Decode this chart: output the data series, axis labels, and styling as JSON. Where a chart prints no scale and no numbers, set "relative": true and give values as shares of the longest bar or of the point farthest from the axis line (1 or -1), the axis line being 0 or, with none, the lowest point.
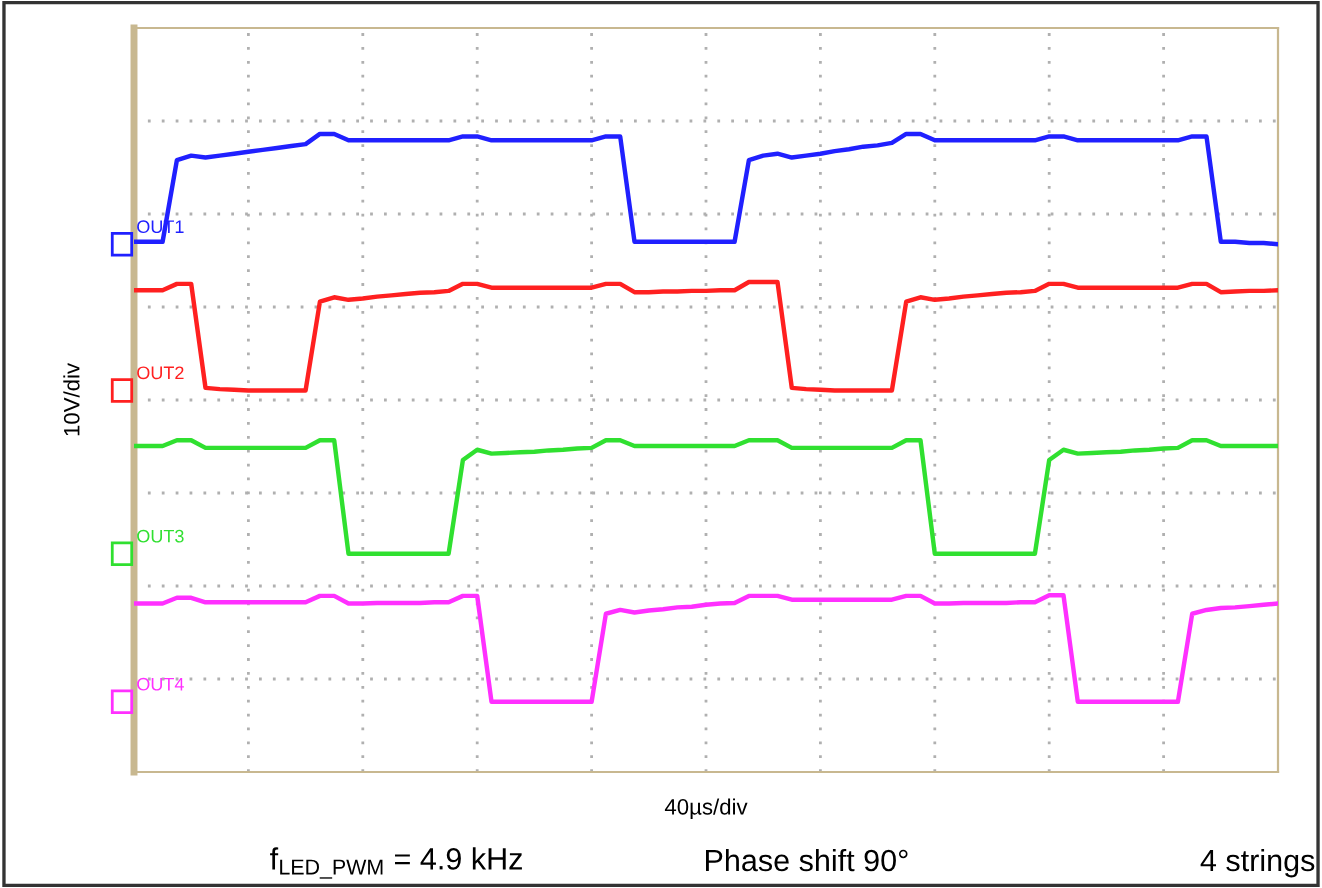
{
  "chart_data": {
    "type": "line",
    "relative": true,
    "xlabel": "40µs/div",
    "ylabel": "10V/div",
    "categories": [
      null,
      null,
      null,
      null,
      null,
      null,
      null,
      null,
      null,
      null,
      null,
      null,
      null,
      null,
      null,
      null,
      null,
      null,
      null,
      null,
      null,
      null,
      null,
      null,
      null,
      null,
      null,
      null,
      null,
      null,
      null,
      null,
      null,
      null,
      null,
      null,
      null,
      null,
      null,
      null,
      null,
      null,
      null,
      null,
      null,
      null,
      null,
      null,
      null,
      null,
      null,
      null,
      null,
      null,
      null,
      null,
      null,
      null,
      null,
      null,
      null,
      null,
      null,
      null,
      null,
      null,
      null,
      null,
      null,
      null,
      null,
      null,
      null,
      null,
      null,
      null,
      null,
      null,
      null,
      null,
      null
    ],
    "grid": true,
    "legend": "left",
    "marker": "none",
    "line_style": "solid",
    "annotations": [
      "f$_{LED_PWM}$ = 4.9 kHz",
      "Phase shift 90°",
      "4 strings"
    ],
    "series": [
      {
        "name": "OUT1",
        "color": "#2020ff",
        "values": [
          0.831,
          0.831,
          0.831,
          0.959,
          0.966,
          0.963,
          0.966,
          0.969,
          0.972,
          0.975,
          0.978,
          0.981,
          0.984,
          1.0,
          1.0,
          0.99,
          0.99,
          0.99,
          0.99,
          0.99,
          0.99,
          0.99,
          0.99,
          0.996,
          0.996,
          0.99,
          0.99,
          0.99,
          0.99,
          0.99,
          0.99,
          0.99,
          0.99,
          0.996,
          0.996,
          0.831,
          0.831,
          0.831,
          0.831,
          0.831,
          0.831,
          0.831,
          0.831,
          0.959,
          0.966,
          0.969,
          0.963,
          0.966,
          0.969,
          0.973,
          0.976,
          0.98,
          0.982,
          0.986,
          1.0,
          1.0,
          0.99,
          0.99,
          0.99,
          0.99,
          0.99,
          0.99,
          0.99,
          0.99,
          0.996,
          0.996,
          0.99,
          0.99,
          0.99,
          0.99,
          0.99,
          0.99,
          0.99,
          0.99,
          0.996,
          0.996,
          0.831,
          0.831,
          0.829,
          0.829,
          0.827
        ]
      },
      {
        "name": "OUT2",
        "color": "#ff2020",
        "values": [
          0.755,
          0.755,
          0.755,
          0.765,
          0.765,
          0.602,
          0.6,
          0.599,
          0.598,
          0.598,
          0.598,
          0.598,
          0.598,
          0.737,
          0.744,
          0.74,
          0.742,
          0.745,
          0.747,
          0.749,
          0.751,
          0.752,
          0.754,
          0.765,
          0.765,
          0.759,
          0.759,
          0.759,
          0.759,
          0.759,
          0.759,
          0.759,
          0.759,
          0.765,
          0.765,
          0.752,
          0.752,
          0.753,
          0.753,
          0.754,
          0.754,
          0.755,
          0.755,
          0.768,
          0.768,
          0.768,
          0.602,
          0.6,
          0.599,
          0.598,
          0.598,
          0.598,
          0.598,
          0.598,
          0.737,
          0.744,
          0.74,
          0.742,
          0.745,
          0.747,
          0.749,
          0.751,
          0.752,
          0.754,
          0.765,
          0.765,
          0.759,
          0.759,
          0.759,
          0.759,
          0.759,
          0.759,
          0.759,
          0.759,
          0.765,
          0.765,
          0.752,
          0.753,
          0.754,
          0.754,
          0.755
        ]
      },
      {
        "name": "OUT3",
        "color": "#30e030",
        "values": [
          0.511,
          0.511,
          0.511,
          0.52,
          0.52,
          0.508,
          0.508,
          0.508,
          0.508,
          0.508,
          0.508,
          0.508,
          0.508,
          0.52,
          0.52,
          0.342,
          0.342,
          0.342,
          0.342,
          0.342,
          0.342,
          0.342,
          0.342,
          0.489,
          0.505,
          0.499,
          0.5,
          0.501,
          0.502,
          0.504,
          0.505,
          0.507,
          0.508,
          0.52,
          0.52,
          0.511,
          0.511,
          0.511,
          0.511,
          0.511,
          0.511,
          0.511,
          0.511,
          0.52,
          0.52,
          0.52,
          0.508,
          0.508,
          0.508,
          0.508,
          0.508,
          0.508,
          0.508,
          0.508,
          0.52,
          0.52,
          0.342,
          0.342,
          0.342,
          0.342,
          0.342,
          0.342,
          0.342,
          0.342,
          0.489,
          0.505,
          0.499,
          0.5,
          0.501,
          0.502,
          0.504,
          0.505,
          0.507,
          0.508,
          0.52,
          0.52,
          0.511,
          0.511,
          0.511,
          0.511,
          0.511
        ]
      },
      {
        "name": "OUT4",
        "color": "#ff30ff",
        "values": [
          0.264,
          0.264,
          0.264,
          0.273,
          0.273,
          0.266,
          0.266,
          0.266,
          0.266,
          0.266,
          0.266,
          0.266,
          0.266,
          0.276,
          0.276,
          0.264,
          0.264,
          0.265,
          0.265,
          0.265,
          0.265,
          0.266,
          0.266,
          0.276,
          0.276,
          0.11,
          0.11,
          0.11,
          0.11,
          0.11,
          0.11,
          0.11,
          0.11,
          0.248,
          0.254,
          0.25,
          0.253,
          0.255,
          0.258,
          0.259,
          0.262,
          0.264,
          0.265,
          0.276,
          0.276,
          0.276,
          0.27,
          0.27,
          0.27,
          0.27,
          0.27,
          0.27,
          0.27,
          0.27,
          0.276,
          0.276,
          0.264,
          0.264,
          0.265,
          0.265,
          0.265,
          0.265,
          0.266,
          0.266,
          0.277,
          0.277,
          0.11,
          0.11,
          0.11,
          0.11,
          0.11,
          0.11,
          0.11,
          0.11,
          0.248,
          0.254,
          0.257,
          0.258,
          0.26,
          0.262,
          0.264
        ]
      }
    ]
  }
}
